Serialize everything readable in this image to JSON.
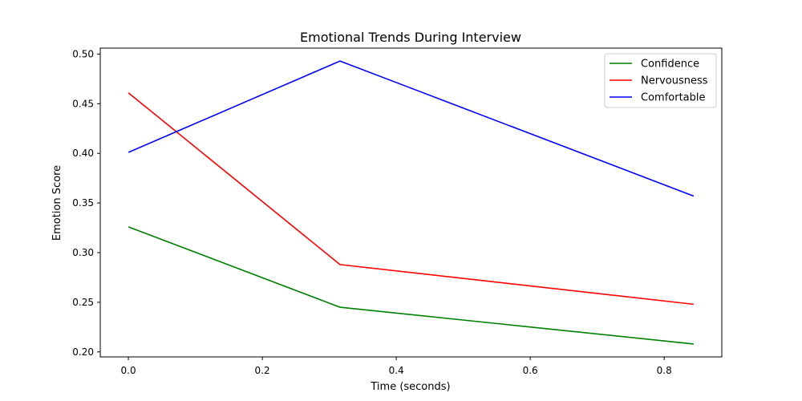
{
  "chart_data": {
    "type": "line",
    "title": "Emotional Trends During Interview",
    "xlabel": "Time (seconds)",
    "ylabel": "Emotion Score",
    "xlim": [
      -0.042,
      0.886
    ],
    "ylim": [
      0.195,
      0.506
    ],
    "x_ticks": [
      0.0,
      0.2,
      0.4,
      0.6,
      0.8
    ],
    "x_tick_labels": [
      "0.0",
      "0.2",
      "0.4",
      "0.6",
      "0.8"
    ],
    "y_ticks": [
      0.2,
      0.25,
      0.3,
      0.35,
      0.4,
      0.45,
      0.5
    ],
    "y_tick_labels": [
      "0.20",
      "0.25",
      "0.30",
      "0.35",
      "0.40",
      "0.45",
      "0.50"
    ],
    "grid": false,
    "legend_position": "top-right",
    "x": [
      0.0,
      0.316,
      0.844
    ],
    "series": [
      {
        "name": "Confidence",
        "color": "#008000",
        "values": [
          0.326,
          0.245,
          0.208
        ]
      },
      {
        "name": "Nervousness",
        "color": "#ff0000",
        "values": [
          0.461,
          0.288,
          0.248
        ]
      },
      {
        "name": "Comfortable",
        "color": "#0000ff",
        "values": [
          0.401,
          0.493,
          0.357
        ]
      }
    ]
  }
}
